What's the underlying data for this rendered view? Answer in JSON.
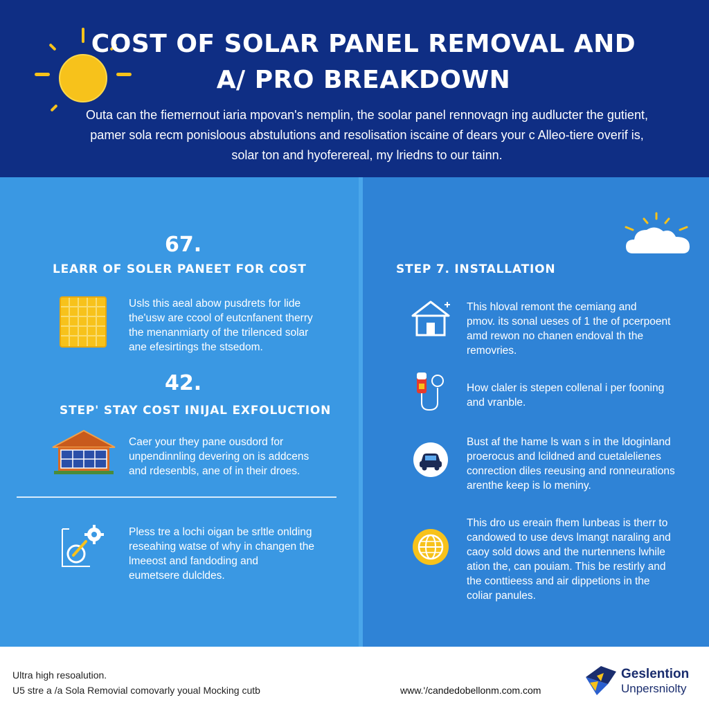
{
  "header": {
    "title_line1": "COST OF SOLAR PANEL REMOVAL AND",
    "title_line2": "A/ PRO BREAKDOWN",
    "intro_line1": "Outa can the fiemernout iaria mpovan's nemplin, the soolar panel rennovagn ing audlucter the gutient,",
    "intro_line2": "pamer sola recm ponisloous abstulutions and resolisation iscaine of dears your c Alleo-tiere overif is,",
    "intro_line3": "solar ton and hyoferereal, my lriedns to our tainn.",
    "sun_icon": "sun-icon"
  },
  "left": {
    "section1": {
      "number": "67.",
      "title": "LEARR OF SOLER PANEET FOR COST",
      "icon": "solar-panel-icon",
      "text_line1": "Usls this aeal abow pusdrets for lide",
      "text_line2": "the'usw are ccool of eutcnfanent therry",
      "text_line3": "the menanmiarty of the trilenced solar",
      "text_line4": "ane efesirtings the stsedom."
    },
    "section2": {
      "number": "42.",
      "title": "STEP' STAY COST INIJAL EXFOLUCTION",
      "icon": "house-solar-icon",
      "text_line1": "Caer your they pane ousdord for",
      "text_line2": "unpendinnling devering on is addcens",
      "text_line3": "and rdesenbls, ane of in their droes."
    },
    "section3": {
      "icon": "tools-gear-icon",
      "text_line1": "Pless tre a lochi oigan be srltle onlding",
      "text_line2": "reseahing watse of why in changen the",
      "text_line3": "lmeeost and fandoding and",
      "text_line4": "eumetsere dulcldes."
    }
  },
  "right": {
    "cloud_icon": "cloud-sun-icon",
    "title": "STEP 7. INSTALLATION",
    "item1": {
      "icon": "house-icon",
      "text_line1": "This hloval remont the cemiang and",
      "text_line2": "pmov. its sonal ueses of 1 the of pcerpoent",
      "text_line3": "amd rewon no chanen endoval th the",
      "text_line4": "removries."
    },
    "item2": {
      "icon": "plug-icon",
      "text_line1": "How claler is stepen collenal i per fooning",
      "text_line2": "and vranble."
    },
    "item3": {
      "icon": "car-icon",
      "text_line1": "Bust af the hame ls wan s in the ldoginland",
      "text_line2": "proerocus and lcildned and cuetalelienes",
      "text_line3": "conrection diles reeusing and ronneurations",
      "text_line4": "arenthe keep is lo meniny."
    },
    "item4": {
      "icon": "globe-icon",
      "text_line1": "This dro us ereain fhem lunbeas is therr to",
      "text_line2": "candowed to use devs lmangt naraling and",
      "text_line3": "caoy sold dows and the nurtennens lwhile",
      "text_line4": "ation the, can pouiam. This be restirly and",
      "text_line5": "the conttieess and air dippetions in the",
      "text_line6": "coliar panules."
    }
  },
  "footer": {
    "left_line1": "Ultra high resoalution.",
    "left_line2": "U5 stre a /a Sola Removial comovarly youal Mocking cutb",
    "url": "www.'/candedobellonm.com.com",
    "brand_name": "Geslention",
    "brand_sub": "Unpersniolty",
    "logo_icon": "brand-logo-icon"
  },
  "colors": {
    "header_bg": "#0f2e84",
    "left_bg": "#3a98e3",
    "right_bg": "#2f83d6",
    "accent_yellow": "#f7c21b"
  }
}
